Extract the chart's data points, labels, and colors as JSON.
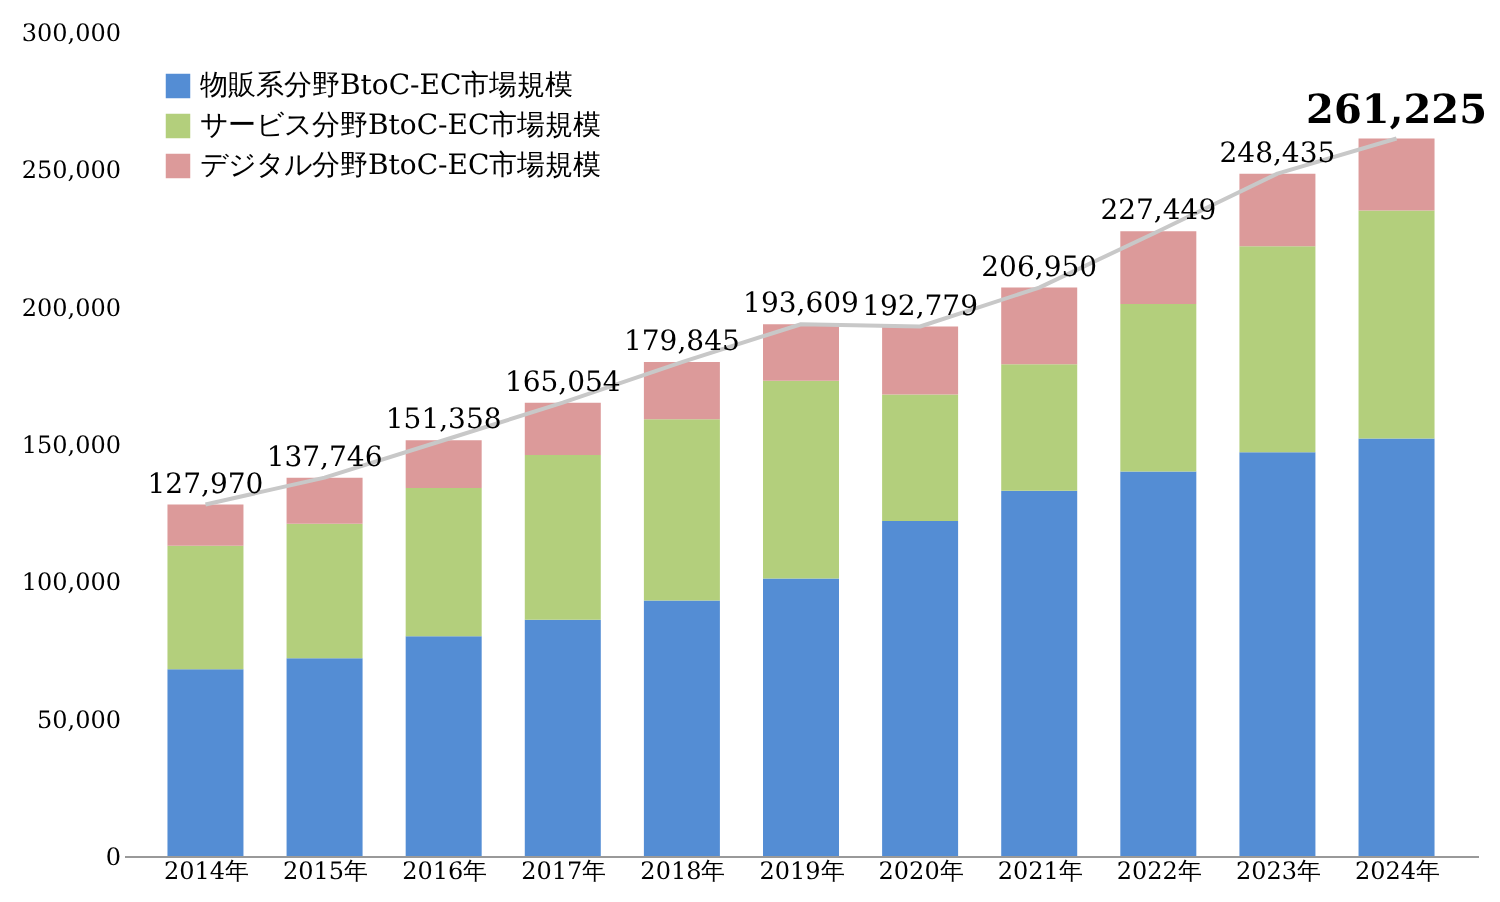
{
  "chart_data": {
    "type": "bar",
    "stacked": true,
    "legend": "top left",
    "categories": [
      "2014年",
      "2015年",
      "2016年",
      "2017年",
      "2018年",
      "2019年",
      "2020年",
      "2021年",
      "2022年",
      "2023年",
      "2024年"
    ],
    "series": [
      {
        "name": "物販系分野BtoC-EC市場規模",
        "color": "#548dd4",
        "values": [
          68000,
          72000,
          80000,
          86000,
          93000,
          101000,
          122000,
          133000,
          140000,
          147000,
          152000
        ]
      },
      {
        "name": "サービス分野BtoC-EC市場規模",
        "color": "#b3cf7c",
        "values": [
          45000,
          49000,
          54000,
          60000,
          66000,
          72000,
          46000,
          46000,
          61000,
          75000,
          83000
        ]
      },
      {
        "name": "デジタル分野BtoC-EC市場規模",
        "color": "#dc9a9a",
        "values": [
          14970,
          16746,
          17358,
          19054,
          20845,
          20609,
          24779,
          27950,
          26449,
          26435,
          26225
        ]
      },
      {
        "type": "line",
        "color": "#c8c8c8",
        "values": [
          127970,
          137746,
          151358,
          165054,
          179845,
          193609,
          192779,
          206950,
          227449,
          248435,
          261225
        ]
      }
    ],
    "totals": [
      "127,970",
      "137,746",
      "151,358",
      "165,054",
      "179,845",
      "193,609",
      "192,779",
      "206,950",
      "227,449",
      "248,435",
      "261,225"
    ],
    "ylim": [
      0,
      300000
    ],
    "yticks": [
      0,
      {
        "value": 50000,
        "label": "50,000"
      },
      {
        "value": 100000,
        "label": "100,000"
      },
      {
        "value": 150000,
        "label": "150,000"
      },
      {
        "value": 200000,
        "label": "200,000"
      },
      {
        "value": 250000,
        "label": "250,000"
      },
      {
        "value": 300000,
        "label": "300,000"
      }
    ]
  }
}
